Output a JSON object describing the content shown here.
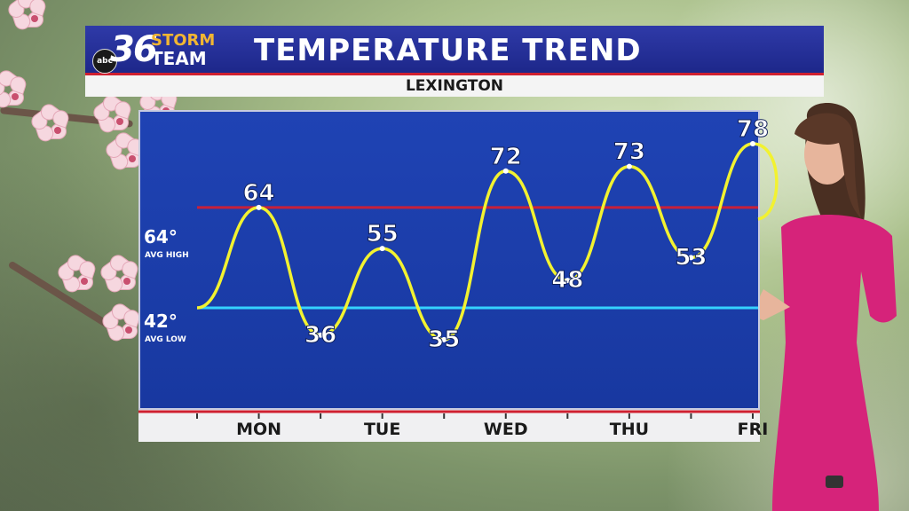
{
  "header": {
    "logo_abc": "abc",
    "logo_number": "36",
    "logo_storm": "STORM",
    "logo_team": "TEAM",
    "title": "TEMPERATURE TREND",
    "location": "LEXINGTON"
  },
  "colors": {
    "header_blue": "#2434a0",
    "accent_red": "#cf2030",
    "plot_blue": "#1d3fae",
    "trend_line": "#f2f230",
    "avg_high_line": "#c8203a",
    "avg_low_line": "#34d2ff"
  },
  "chart_data": {
    "type": "line",
    "title": "TEMPERATURE TREND",
    "x": [
      "",
      "MON",
      "",
      "TUE",
      "",
      "WED",
      "",
      "THU",
      "",
      "FRI"
    ],
    "series": [
      {
        "values": [
          42,
          64,
          36,
          55,
          35,
          72,
          48,
          73,
          53,
          78
        ]
      }
    ],
    "point_labels": [
      "",
      "64",
      "36",
      "55",
      "35",
      "72",
      "48",
      "73",
      "53",
      "78"
    ],
    "categories": [
      "MON",
      "TUE",
      "WED",
      "THU",
      "FRI"
    ],
    "reference_lines": [
      {
        "value": 64,
        "label": "64°",
        "sublabel": "AVG HIGH",
        "color": "#c8203a"
      },
      {
        "value": 42,
        "label": "42°",
        "sublabel": "AVG LOW",
        "color": "#34d2ff"
      }
    ],
    "ylim": [
      20,
      85
    ],
    "grid": false
  }
}
